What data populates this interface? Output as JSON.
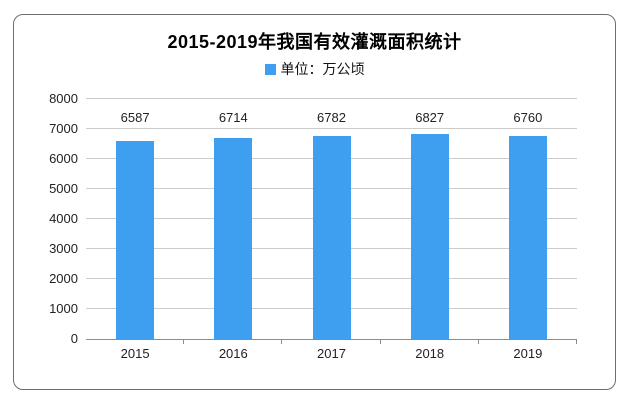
{
  "card": {
    "title": "2015-2019年我国有效灌溉面积统计",
    "legend": {
      "label": "单位：万公顷",
      "marker_color": "#3E9EF0"
    }
  },
  "chart_data": {
    "type": "bar",
    "title": "2015-2019年我国有效灌溉面积统计",
    "legend": [
      "单位：万公顷"
    ],
    "legend_position": "top-center",
    "categories": [
      "2015",
      "2016",
      "2017",
      "2018",
      "2019"
    ],
    "values": [
      6587,
      6714,
      6782,
      6827,
      6760
    ],
    "xlabel": "",
    "ylabel": "",
    "ylim": [
      0,
      8000
    ],
    "ytick_interval": 1000,
    "yticks": [
      0,
      1000,
      2000,
      3000,
      4000,
      5000,
      6000,
      7000,
      8000
    ],
    "grid": true,
    "value_labels_shown": true,
    "bar_color": "#3E9EF0"
  },
  "colors": {
    "bar": "#3E9EF0",
    "gridline": "#cccccc",
    "axis_line": "#8c8c8c",
    "card_border": "#6e6e6e",
    "label_text": "#222222",
    "title_text": "#000000",
    "background": "#ffffff"
  }
}
